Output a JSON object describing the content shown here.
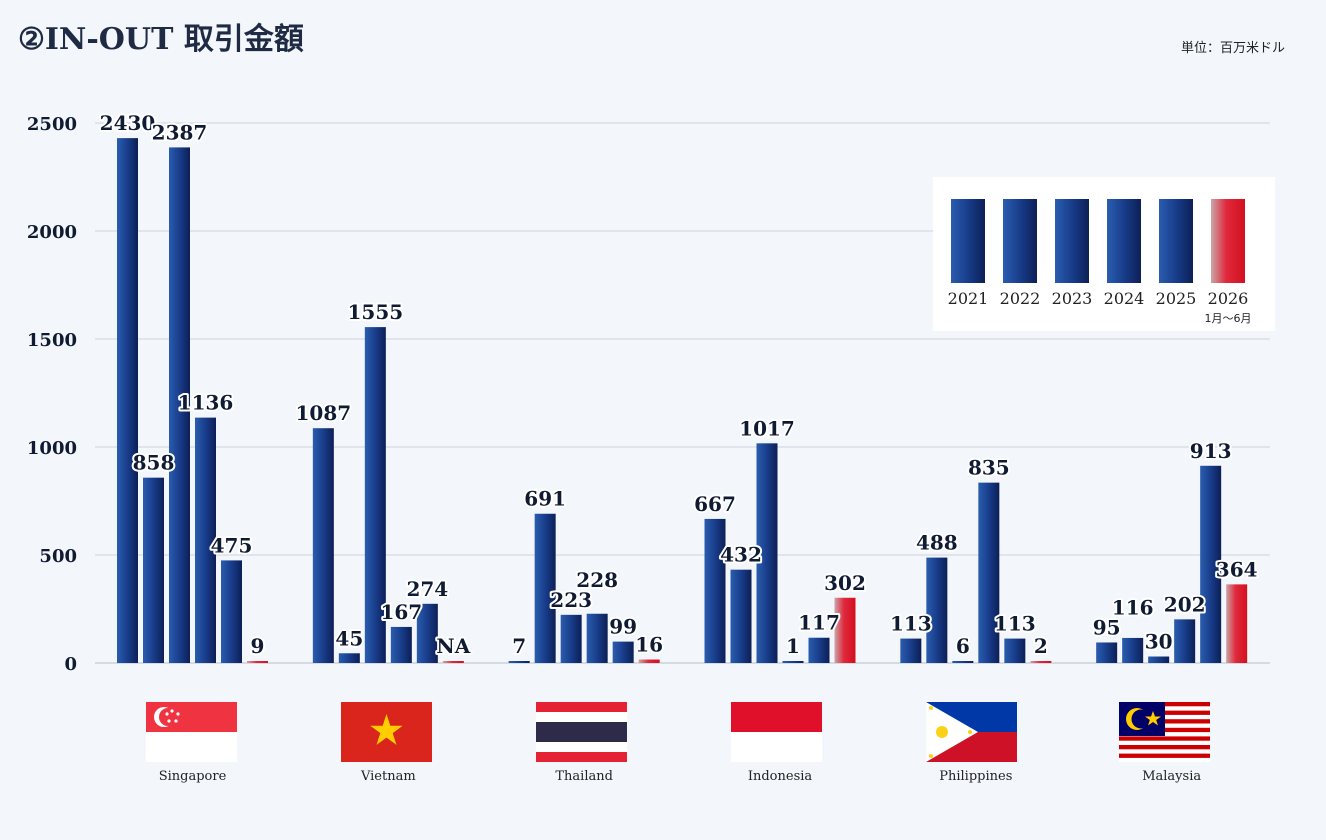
{
  "title": "②IN-OUT 取引金額",
  "unit": "単位：百万米ドル",
  "chart_data": {
    "type": "bar",
    "title": "②IN-OUT 取引金額",
    "ylabel": "",
    "ylim": [
      0,
      2500
    ],
    "yticks": [
      0,
      500,
      1000,
      1500,
      2000,
      2500
    ],
    "grid": true,
    "legend_position": "top-right",
    "categories": [
      "Singapore",
      "Vietnam",
      "Thailand",
      "Indonesia",
      "Philippines",
      "Malaysia"
    ],
    "series": [
      {
        "name": "2021",
        "color": "#1b3f8f",
        "values": [
          2430,
          1087,
          7,
          667,
          113,
          95
        ],
        "labels": [
          "2430",
          "1087",
          "7",
          "667",
          "113",
          "95"
        ]
      },
      {
        "name": "2022",
        "color": "#1b3f8f",
        "values": [
          858,
          45,
          691,
          432,
          488,
          116
        ],
        "labels": [
          "858",
          "45",
          "691",
          "432",
          "488",
          "116"
        ]
      },
      {
        "name": "2023",
        "color": "#1b3f8f",
        "values": [
          2387,
          1555,
          223,
          1017,
          6,
          30
        ],
        "labels": [
          "2387",
          "1555",
          "223",
          "1017",
          "6",
          "30"
        ]
      },
      {
        "name": "2024",
        "color": "#1b3f8f",
        "values": [
          1136,
          167,
          228,
          1,
          835,
          202
        ],
        "labels": [
          "1136",
          "167",
          "228",
          "1",
          "835",
          "202"
        ]
      },
      {
        "name": "2025",
        "color": "#1b3f8f",
        "values": [
          475,
          274,
          99,
          117,
          113,
          913
        ],
        "labels": [
          "475",
          "274",
          "99",
          "117",
          "113",
          "913"
        ]
      },
      {
        "name": "2026",
        "sublabel": "1月～6月",
        "color": "#d9142b",
        "values": [
          9,
          null,
          16,
          302,
          2,
          364
        ],
        "labels": [
          "9",
          "NA",
          "16",
          "302",
          "2",
          "364"
        ]
      }
    ]
  }
}
